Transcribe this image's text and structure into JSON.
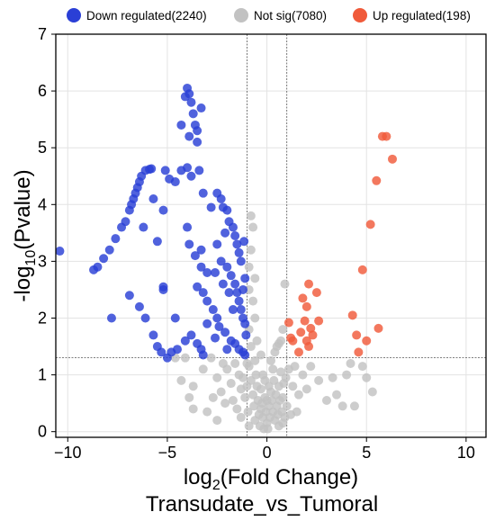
{
  "chart_data": {
    "type": "scatter",
    "title": "Transudate_vs_Tumoral",
    "xlabel": {
      "prefix": "log",
      "sub": "2",
      "suffix": "(Fold Change)"
    },
    "ylabel": {
      "prefix": "-log",
      "sub": "10",
      "suffix": "(Pvalue)"
    },
    "xlim": [
      -10.6,
      11.0
    ],
    "ylim": [
      -0.1,
      7.0
    ],
    "xticks": [
      -10,
      -5,
      0,
      5,
      10
    ],
    "yticks": [
      0,
      1,
      2,
      3,
      4,
      5,
      6,
      7
    ],
    "grid": true,
    "legend_position": "top",
    "thresholds": {
      "log2fc": [
        -1,
        1
      ],
      "neg_log10_p": 1.3
    },
    "series": [
      {
        "name": "Down regulated(2240)",
        "color": "#2a3fd6",
        "points": [
          [
            -10.4,
            3.18
          ],
          [
            -8.7,
            2.85
          ],
          [
            -8.5,
            2.9
          ],
          [
            -8.2,
            3.05
          ],
          [
            -7.9,
            3.2
          ],
          [
            -7.6,
            3.4
          ],
          [
            -7.3,
            3.6
          ],
          [
            -7.1,
            3.7
          ],
          [
            -6.9,
            3.9
          ],
          [
            -6.8,
            4.0
          ],
          [
            -6.7,
            4.1
          ],
          [
            -6.6,
            4.2
          ],
          [
            -6.5,
            4.3
          ],
          [
            -6.4,
            4.4
          ],
          [
            -6.3,
            4.5
          ],
          [
            -6.1,
            4.6
          ],
          [
            -5.9,
            4.62
          ],
          [
            -5.8,
            4.63
          ],
          [
            -5.7,
            4.1
          ],
          [
            -5.2,
            3.9
          ],
          [
            -7.8,
            2.0
          ],
          [
            -6.9,
            2.4
          ],
          [
            -6.4,
            2.2
          ],
          [
            -6.1,
            2.0
          ],
          [
            -5.7,
            1.7
          ],
          [
            -5.5,
            1.5
          ],
          [
            -5.3,
            1.4
          ],
          [
            -4.8,
            1.4
          ],
          [
            -4.5,
            1.45
          ],
          [
            -4.1,
            1.6
          ],
          [
            -3.8,
            1.7
          ],
          [
            -3.5,
            1.55
          ],
          [
            -3.3,
            1.45
          ],
          [
            -3.2,
            1.35
          ],
          [
            -5.0,
            1.3
          ],
          [
            -5.5,
            3.35
          ],
          [
            -5.1,
            4.6
          ],
          [
            -4.9,
            4.45
          ],
          [
            -4.6,
            4.4
          ],
          [
            -4.3,
            4.6
          ],
          [
            -4.0,
            4.65
          ],
          [
            -3.8,
            4.5
          ],
          [
            -3.4,
            4.6
          ],
          [
            -4.0,
            3.6
          ],
          [
            -3.9,
            3.3
          ],
          [
            -3.6,
            3.1
          ],
          [
            -3.3,
            2.9
          ],
          [
            -3.0,
            2.8
          ],
          [
            -4.3,
            5.4
          ],
          [
            -4.1,
            5.9
          ],
          [
            -4.0,
            6.05
          ],
          [
            -3.9,
            5.95
          ],
          [
            -3.8,
            5.8
          ],
          [
            -3.7,
            5.6
          ],
          [
            -3.6,
            5.4
          ],
          [
            -3.5,
            5.3
          ],
          [
            -3.3,
            5.7
          ],
          [
            -3.9,
            5.2
          ],
          [
            -3.5,
            5.1
          ],
          [
            -3.3,
            3.2
          ],
          [
            -3.2,
            4.2
          ],
          [
            -2.8,
            3.95
          ],
          [
            -2.5,
            4.2
          ],
          [
            -2.3,
            4.1
          ],
          [
            -2.2,
            3.95
          ],
          [
            -2.0,
            3.9
          ],
          [
            -1.9,
            3.7
          ],
          [
            -1.7,
            3.6
          ],
          [
            -1.6,
            3.45
          ],
          [
            -1.5,
            3.3
          ],
          [
            -1.4,
            3.15
          ],
          [
            -1.3,
            3.0
          ],
          [
            -2.1,
            3.5
          ],
          [
            -2.5,
            3.3
          ],
          [
            -2.3,
            3.0
          ],
          [
            -2.0,
            2.9
          ],
          [
            -1.8,
            2.75
          ],
          [
            -1.6,
            2.6
          ],
          [
            -1.5,
            2.45
          ],
          [
            -1.4,
            2.3
          ],
          [
            -1.3,
            2.15
          ],
          [
            -1.2,
            2.0
          ],
          [
            -1.1,
            1.9
          ],
          [
            -1.05,
            1.7
          ],
          [
            -3.5,
            2.55
          ],
          [
            -3.2,
            2.45
          ],
          [
            -3.0,
            2.3
          ],
          [
            -2.7,
            2.15
          ],
          [
            -2.5,
            2.0
          ],
          [
            -2.4,
            1.85
          ],
          [
            -2.1,
            1.75
          ],
          [
            -1.8,
            1.6
          ],
          [
            -1.6,
            1.55
          ],
          [
            -1.4,
            1.45
          ],
          [
            -1.2,
            1.4
          ],
          [
            -1.1,
            1.35
          ],
          [
            -2.0,
            1.45
          ],
          [
            -2.6,
            1.65
          ],
          [
            -3.0,
            1.9
          ],
          [
            -1.7,
            2.15
          ],
          [
            -1.9,
            2.45
          ],
          [
            -2.2,
            2.6
          ],
          [
            -2.6,
            2.8
          ],
          [
            -1.2,
            2.5
          ],
          [
            -1.1,
            2.7
          ],
          [
            -1.15,
            3.35
          ],
          [
            -5.2,
            2.5
          ],
          [
            -4.6,
            2.0
          ],
          [
            -5.2,
            2.55
          ],
          [
            -6.2,
            3.6
          ]
        ]
      },
      {
        "name": "Not sig(7080)",
        "color": "#c2c2c2",
        "points": [
          [
            -0.8,
            3.8
          ],
          [
            -0.7,
            3.6
          ],
          [
            -0.8,
            3.2
          ],
          [
            -0.9,
            2.9
          ],
          [
            -0.6,
            2.7
          ],
          [
            -0.9,
            2.5
          ],
          [
            -0.7,
            2.3
          ],
          [
            -0.6,
            2.0
          ],
          [
            -0.9,
            1.8
          ],
          [
            -0.5,
            1.6
          ],
          [
            -0.8,
            1.5
          ],
          [
            -0.3,
            1.35
          ],
          [
            0.4,
            1.4
          ],
          [
            0.6,
            1.55
          ],
          [
            0.8,
            1.8
          ],
          [
            0.9,
            2.6
          ],
          [
            0.7,
            1.6
          ],
          [
            0.5,
            1.5
          ],
          [
            -4.1,
            1.3
          ],
          [
            -4.3,
            0.9
          ],
          [
            -3.7,
            0.8
          ],
          [
            -3.2,
            1.1
          ],
          [
            -3.9,
            0.6
          ],
          [
            -3.7,
            0.4
          ],
          [
            -3.0,
            0.35
          ],
          [
            -2.7,
            0.6
          ],
          [
            -2.8,
            1.3
          ],
          [
            -2.5,
            0.95
          ],
          [
            -2.3,
            0.7
          ],
          [
            -2.1,
            0.5
          ],
          [
            -2.0,
            1.1
          ],
          [
            -1.8,
            0.85
          ],
          [
            -1.7,
            0.55
          ],
          [
            -1.5,
            0.4
          ],
          [
            -1.4,
            1.0
          ],
          [
            -1.3,
            0.75
          ],
          [
            -1.2,
            0.95
          ],
          [
            -1.1,
            0.6
          ],
          [
            -1.0,
            0.8
          ],
          [
            -0.95,
            0.35
          ],
          [
            -0.9,
            1.15
          ],
          [
            -0.8,
            0.9
          ],
          [
            -0.7,
            0.65
          ],
          [
            -0.65,
            0.45
          ],
          [
            -0.6,
            0.2
          ],
          [
            -0.55,
            1.0
          ],
          [
            -0.5,
            0.8
          ],
          [
            -0.45,
            0.55
          ],
          [
            -0.4,
            0.3
          ],
          [
            -0.35,
            0.1
          ],
          [
            -0.3,
            0.75
          ],
          [
            -0.25,
            0.5
          ],
          [
            -0.2,
            0.25
          ],
          [
            -0.15,
            0.05
          ],
          [
            -0.1,
            0.6
          ],
          [
            -0.05,
            0.35
          ],
          [
            0.0,
            0.15
          ],
          [
            0.05,
            0.05
          ],
          [
            0.1,
            0.45
          ],
          [
            0.15,
            0.25
          ],
          [
            0.2,
            0.7
          ],
          [
            0.25,
            0.55
          ],
          [
            0.3,
            0.35
          ],
          [
            0.35,
            0.9
          ],
          [
            0.4,
            0.2
          ],
          [
            0.45,
            0.65
          ],
          [
            0.5,
            0.45
          ],
          [
            0.55,
            0.3
          ],
          [
            0.6,
            0.8
          ],
          [
            0.65,
            0.55
          ],
          [
            0.7,
            1.05
          ],
          [
            0.75,
            0.35
          ],
          [
            0.8,
            0.6
          ],
          [
            0.85,
            0.85
          ],
          [
            0.9,
            0.25
          ],
          [
            0.95,
            0.95
          ],
          [
            0.3,
            1.1
          ],
          [
            0.2,
            1.25
          ],
          [
            -0.2,
            1.0
          ],
          [
            -0.6,
            1.25
          ],
          [
            -1.0,
            1.2
          ],
          [
            -1.6,
            1.2
          ],
          [
            -2.2,
            1.2
          ],
          [
            -4.6,
            1.3
          ],
          [
            1.1,
            1.1
          ],
          [
            1.3,
            0.8
          ],
          [
            1.4,
            1.15
          ],
          [
            1.6,
            0.65
          ],
          [
            1.8,
            1.0
          ],
          [
            2.0,
            0.75
          ],
          [
            2.2,
            1.15
          ],
          [
            2.6,
            0.9
          ],
          [
            3.0,
            0.55
          ],
          [
            3.3,
            0.95
          ],
          [
            3.5,
            0.65
          ],
          [
            3.8,
            0.45
          ],
          [
            4.0,
            1.0
          ],
          [
            4.4,
            0.45
          ],
          [
            4.8,
            1.15
          ],
          [
            5.0,
            0.95
          ],
          [
            5.3,
            0.7
          ],
          [
            4.2,
            1.2
          ],
          [
            1.0,
            0.45
          ],
          [
            1.2,
            0.3
          ],
          [
            0.8,
            0.15
          ],
          [
            -0.3,
            0.4
          ],
          [
            -0.9,
            0.1
          ],
          [
            -2.5,
            0.2
          ],
          [
            -1.3,
            0.25
          ],
          [
            1.5,
            0.35
          ],
          [
            0.6,
            0.1
          ],
          [
            -0.1,
            0.9
          ],
          [
            0.1,
            0.8
          ],
          [
            0.0,
            0.55
          ]
        ]
      },
      {
        "name": "Up regulated(198)",
        "color": "#f05a3a",
        "points": [
          [
            6.0,
            5.2
          ],
          [
            5.8,
            5.2
          ],
          [
            6.3,
            4.8
          ],
          [
            5.5,
            4.42
          ],
          [
            5.2,
            3.65
          ],
          [
            4.8,
            2.85
          ],
          [
            4.3,
            2.05
          ],
          [
            4.5,
            1.7
          ],
          [
            5.0,
            1.6
          ],
          [
            5.6,
            1.82
          ],
          [
            4.6,
            1.4
          ],
          [
            2.5,
            2.45
          ],
          [
            2.1,
            2.6
          ],
          [
            1.8,
            2.35
          ],
          [
            2.0,
            2.2
          ],
          [
            1.9,
            1.95
          ],
          [
            2.6,
            1.95
          ],
          [
            1.1,
            1.92
          ],
          [
            1.2,
            1.65
          ],
          [
            1.3,
            1.6
          ],
          [
            1.7,
            1.75
          ],
          [
            2.2,
            1.82
          ],
          [
            2.1,
            1.5
          ],
          [
            2.0,
            1.6
          ],
          [
            1.6,
            1.4
          ],
          [
            2.3,
            1.7
          ]
        ]
      }
    ]
  }
}
